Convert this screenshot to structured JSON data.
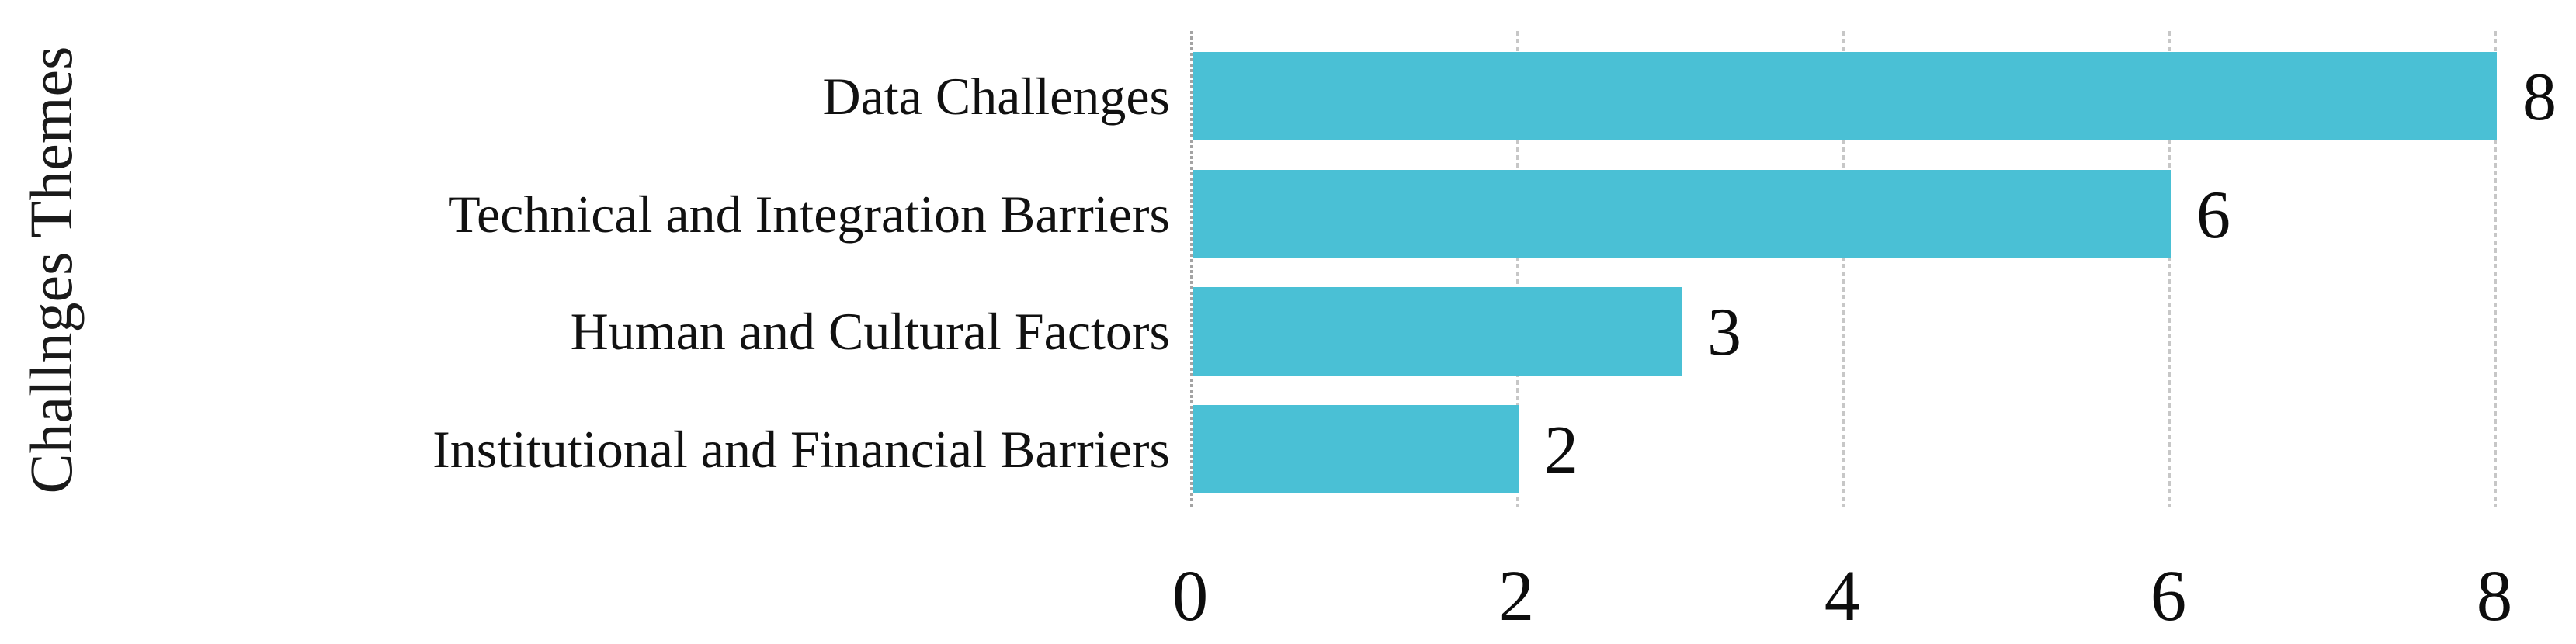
{
  "chart_data": {
    "type": "bar",
    "orientation": "horizontal",
    "title": "",
    "ylabel": "Challnges Themes",
    "xlabel": "",
    "categories": [
      "Data Challenges",
      "Technical and Integration Barriers",
      "Human and Cultural Factors",
      "Institutional and Financial Barriers"
    ],
    "values": [
      8,
      6,
      3,
      2
    ],
    "value_labels": [
      "8",
      "6",
      "3",
      "2"
    ],
    "xticks": [
      "0",
      "2",
      "4",
      "6",
      "8"
    ],
    "xtick_values": [
      0,
      2,
      4,
      6,
      8
    ],
    "xlim": [
      0,
      8
    ],
    "grid": "vertical-dashed",
    "legend": "none",
    "colors": {
      "bar": "#4ac0d5",
      "gridline": "#c7c7c7",
      "zero_axis": "#a3a3a3",
      "text": "#141414"
    }
  }
}
